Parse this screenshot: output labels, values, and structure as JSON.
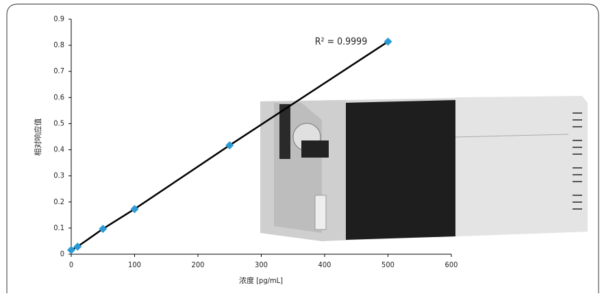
{
  "chart_data": {
    "type": "scatter",
    "annotation": "R² = 0.9999",
    "x_label": "浓度 [pg/mL]",
    "y_label": "相对响应值",
    "x": [
      0,
      10,
      50,
      100,
      250,
      500
    ],
    "series": [
      {
        "color": "#2a9ad6",
        "values": [
          0.016,
          0.029,
          0.097,
          0.173,
          0.417,
          0.814
        ]
      }
    ],
    "trendline": true,
    "xlim": [
      0,
      600
    ],
    "xticks": [
      0,
      100,
      200,
      300,
      400,
      500,
      600
    ],
    "ylim": [
      0,
      0.9
    ],
    "yticks": [
      0,
      0.1,
      0.2,
      0.3,
      0.4,
      0.5,
      0.6,
      0.7,
      0.8,
      0.9
    ]
  }
}
